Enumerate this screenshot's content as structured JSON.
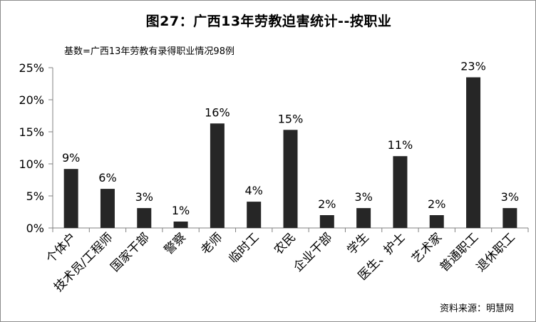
{
  "chart_data": {
    "type": "bar",
    "title": "图27：广西13年劳教迫害统计--按职业",
    "subtitle": "基数=广西13年劳教有录得职业情况98例",
    "source": "资料来源：明慧网",
    "categories": [
      "个体户",
      "技术员/工程师",
      "国家干部",
      "警察",
      "老师",
      "临时工",
      "农民",
      "企业干部",
      "学生",
      "医生、护士",
      "艺术家",
      "普通职工",
      "退休职工"
    ],
    "values": [
      0.092,
      0.061,
      0.031,
      0.01,
      0.163,
      0.041,
      0.153,
      0.02,
      0.031,
      0.112,
      0.02,
      0.235,
      0.031
    ],
    "data_labels": [
      "9%",
      "6%",
      "3%",
      "1%",
      "16%",
      "4%",
      "15%",
      "2%",
      "3%",
      "11%",
      "2%",
      "23%",
      "3%"
    ],
    "ylim": [
      0,
      0.25
    ],
    "yticks": [
      0,
      0.05,
      0.1,
      0.15,
      0.2,
      0.25
    ],
    "ytick_labels": [
      "0%",
      "5%",
      "10%",
      "15%",
      "20%",
      "25%"
    ],
    "xlabel": "",
    "ylabel": "",
    "grid": false,
    "legend": "none",
    "bar_color": "#262626"
  }
}
